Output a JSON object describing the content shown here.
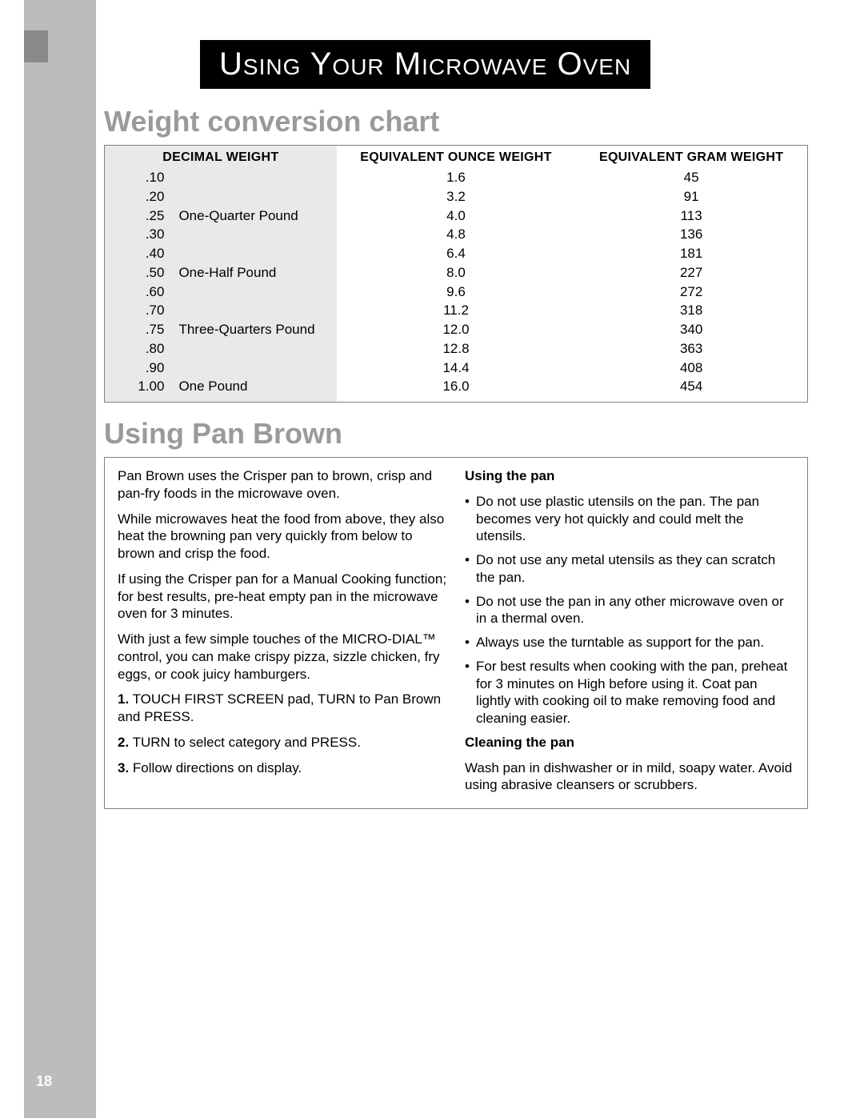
{
  "page_number": "18",
  "banner_title": "Using Your Microwave Oven",
  "section1_title": "Weight conversion chart",
  "section2_title": "Using Pan Brown",
  "colors": {
    "sidebar": "#bcbcbc",
    "tab": "#8a8a8a",
    "banner_bg": "#000000",
    "banner_fg": "#ffffff",
    "section_heading": "#9a9a9a",
    "frame_border": "#808080",
    "table_shade": "#e9e9e9",
    "body_text": "#000000",
    "page_bg": "#ffffff"
  },
  "typography": {
    "body_font": "Arial",
    "body_size_pt": 13,
    "heading_size_pt": 27,
    "banner_size_pt": 30,
    "banner_smallcaps": true
  },
  "weight_table": {
    "headers": [
      "DECIMAL WEIGHT",
      "EQUIVALENT OUNCE WEIGHT",
      "EQUIVALENT GRAM WEIGHT"
    ],
    "col_widths_pct": [
      33,
      34,
      33
    ],
    "rows": [
      {
        "decimal": ".10",
        "label": "",
        "oz": "1.6",
        "g": "45"
      },
      {
        "decimal": ".20",
        "label": "",
        "oz": "3.2",
        "g": "91"
      },
      {
        "decimal": ".25",
        "label": "One-Quarter Pound",
        "oz": "4.0",
        "g": "113"
      },
      {
        "decimal": ".30",
        "label": "",
        "oz": "4.8",
        "g": "136"
      },
      {
        "decimal": ".40",
        "label": "",
        "oz": "6.4",
        "g": "181"
      },
      {
        "decimal": ".50",
        "label": "One-Half Pound",
        "oz": "8.0",
        "g": "227"
      },
      {
        "decimal": ".60",
        "label": "",
        "oz": "9.6",
        "g": "272"
      },
      {
        "decimal": ".70",
        "label": "",
        "oz": "11.2",
        "g": "318"
      },
      {
        "decimal": ".75",
        "label": "Three-Quarters Pound",
        "oz": "12.0",
        "g": "340"
      },
      {
        "decimal": ".80",
        "label": "",
        "oz": "12.8",
        "g": "363"
      },
      {
        "decimal": ".90",
        "label": "",
        "oz": "14.4",
        "g": "408"
      },
      {
        "decimal": "1.00",
        "label": "One Pound",
        "oz": "16.0",
        "g": "454"
      }
    ]
  },
  "pan_brown": {
    "intro": [
      "Pan Brown uses the Crisper pan to brown, crisp and pan-fry foods in the microwave oven.",
      "While microwaves heat the food from above, they also heat the browning pan very quickly from below to brown and crisp the food.",
      "If using the Crisper pan for a Manual Cooking function; for best results, pre-heat empty pan in the microwave oven for 3 minutes.",
      "With just a few simple touches of the MICRO-DIAL™ control, you can make crispy pizza, sizzle chicken, fry eggs, or cook juicy hamburgers."
    ],
    "steps": [
      "TOUCH FIRST SCREEN pad, TURN to Pan Brown and PRESS.",
      "TURN to select category and PRESS.",
      "Follow directions on display."
    ],
    "using_heading": "Using the pan",
    "using_bullets": [
      "Do not use plastic utensils on the pan. The pan becomes very hot quickly and could melt the utensils.",
      "Do not use any metal utensils as they can scratch the pan.",
      "Do not use the pan in any other microwave oven or in a thermal oven.",
      "Always use the turntable as support for the pan.",
      "For best results when cooking with the pan, preheat for 3 minutes on High before using it. Coat pan lightly with cooking oil to make removing food and cleaning easier."
    ],
    "cleaning_heading": "Cleaning the pan",
    "cleaning_text": "Wash pan in dishwasher or in mild, soapy water. Avoid using abrasive cleansers or scrubbers."
  }
}
